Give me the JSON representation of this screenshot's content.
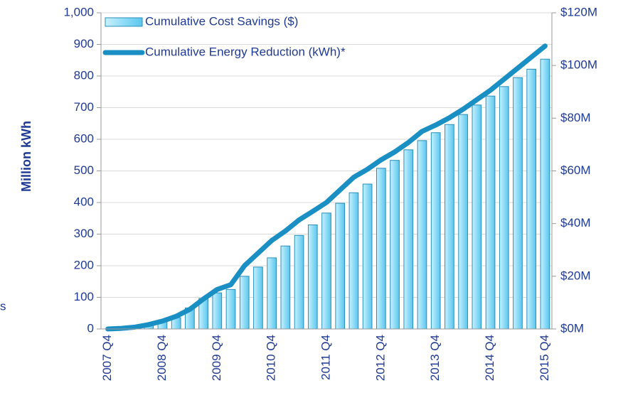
{
  "chart_data": {
    "type": "bar",
    "y_label": "Million kWh",
    "annotation": "s",
    "categories": [
      "2007 Q4",
      null,
      null,
      null,
      "2008 Q4",
      null,
      null,
      null,
      "2009 Q4",
      null,
      null,
      null,
      "2010 Q4",
      null,
      null,
      null,
      "2011 Q4",
      null,
      null,
      null,
      "2012 Q4",
      null,
      null,
      null,
      "2013 Q4",
      null,
      null,
      null,
      "2014 Q4",
      null,
      null,
      null,
      "2015 Q4"
    ],
    "series": [
      {
        "name": "Cumulative Cost Savings ($)",
        "type": "bar",
        "axis": "y2",
        "color": "#80d8f6",
        "values": [
          0,
          0.3,
          0.8,
          1.6,
          3,
          4.3,
          8,
          11.6,
          13.7,
          15,
          20,
          23.5,
          27,
          31.5,
          35.5,
          39.5,
          44,
          47.7,
          51.7,
          55,
          61,
          64,
          68,
          71.5,
          74.5,
          77.6,
          81.4,
          85,
          88.4,
          92,
          95.4,
          98.6,
          102.4
        ]
      },
      {
        "name": "Cumulative Energy Reduction (kWh)*",
        "type": "line",
        "axis": "y",
        "color": "#1a8fc4",
        "values": [
          0,
          2,
          6,
          14,
          25,
          40,
          62,
          95,
          125,
          140,
          200,
          240,
          280,
          310,
          345,
          372,
          400,
          440,
          480,
          505,
          535,
          560,
          590,
          625,
          645,
          668,
          695,
          725,
          755,
          790,
          825,
          860,
          895
        ]
      }
    ],
    "ylim": [
      0,
      1000
    ],
    "yticks": [
      0,
      100,
      200,
      300,
      400,
      500,
      600,
      700,
      800,
      900,
      {
        "value": 1000,
        "label": "1,000"
      }
    ],
    "y2lim": [
      0,
      120
    ],
    "y2ticks": [
      {
        "value": 0,
        "label": "$0M"
      },
      {
        "value": 20,
        "label": "$20M"
      },
      {
        "value": 40,
        "label": "$40M"
      },
      {
        "value": 60,
        "label": "$60M"
      },
      {
        "value": 80,
        "label": "$80M"
      },
      {
        "value": 100,
        "label": "$100M"
      },
      {
        "value": 120,
        "label": "$120M"
      }
    ],
    "grid": true,
    "legend": "top-left"
  }
}
